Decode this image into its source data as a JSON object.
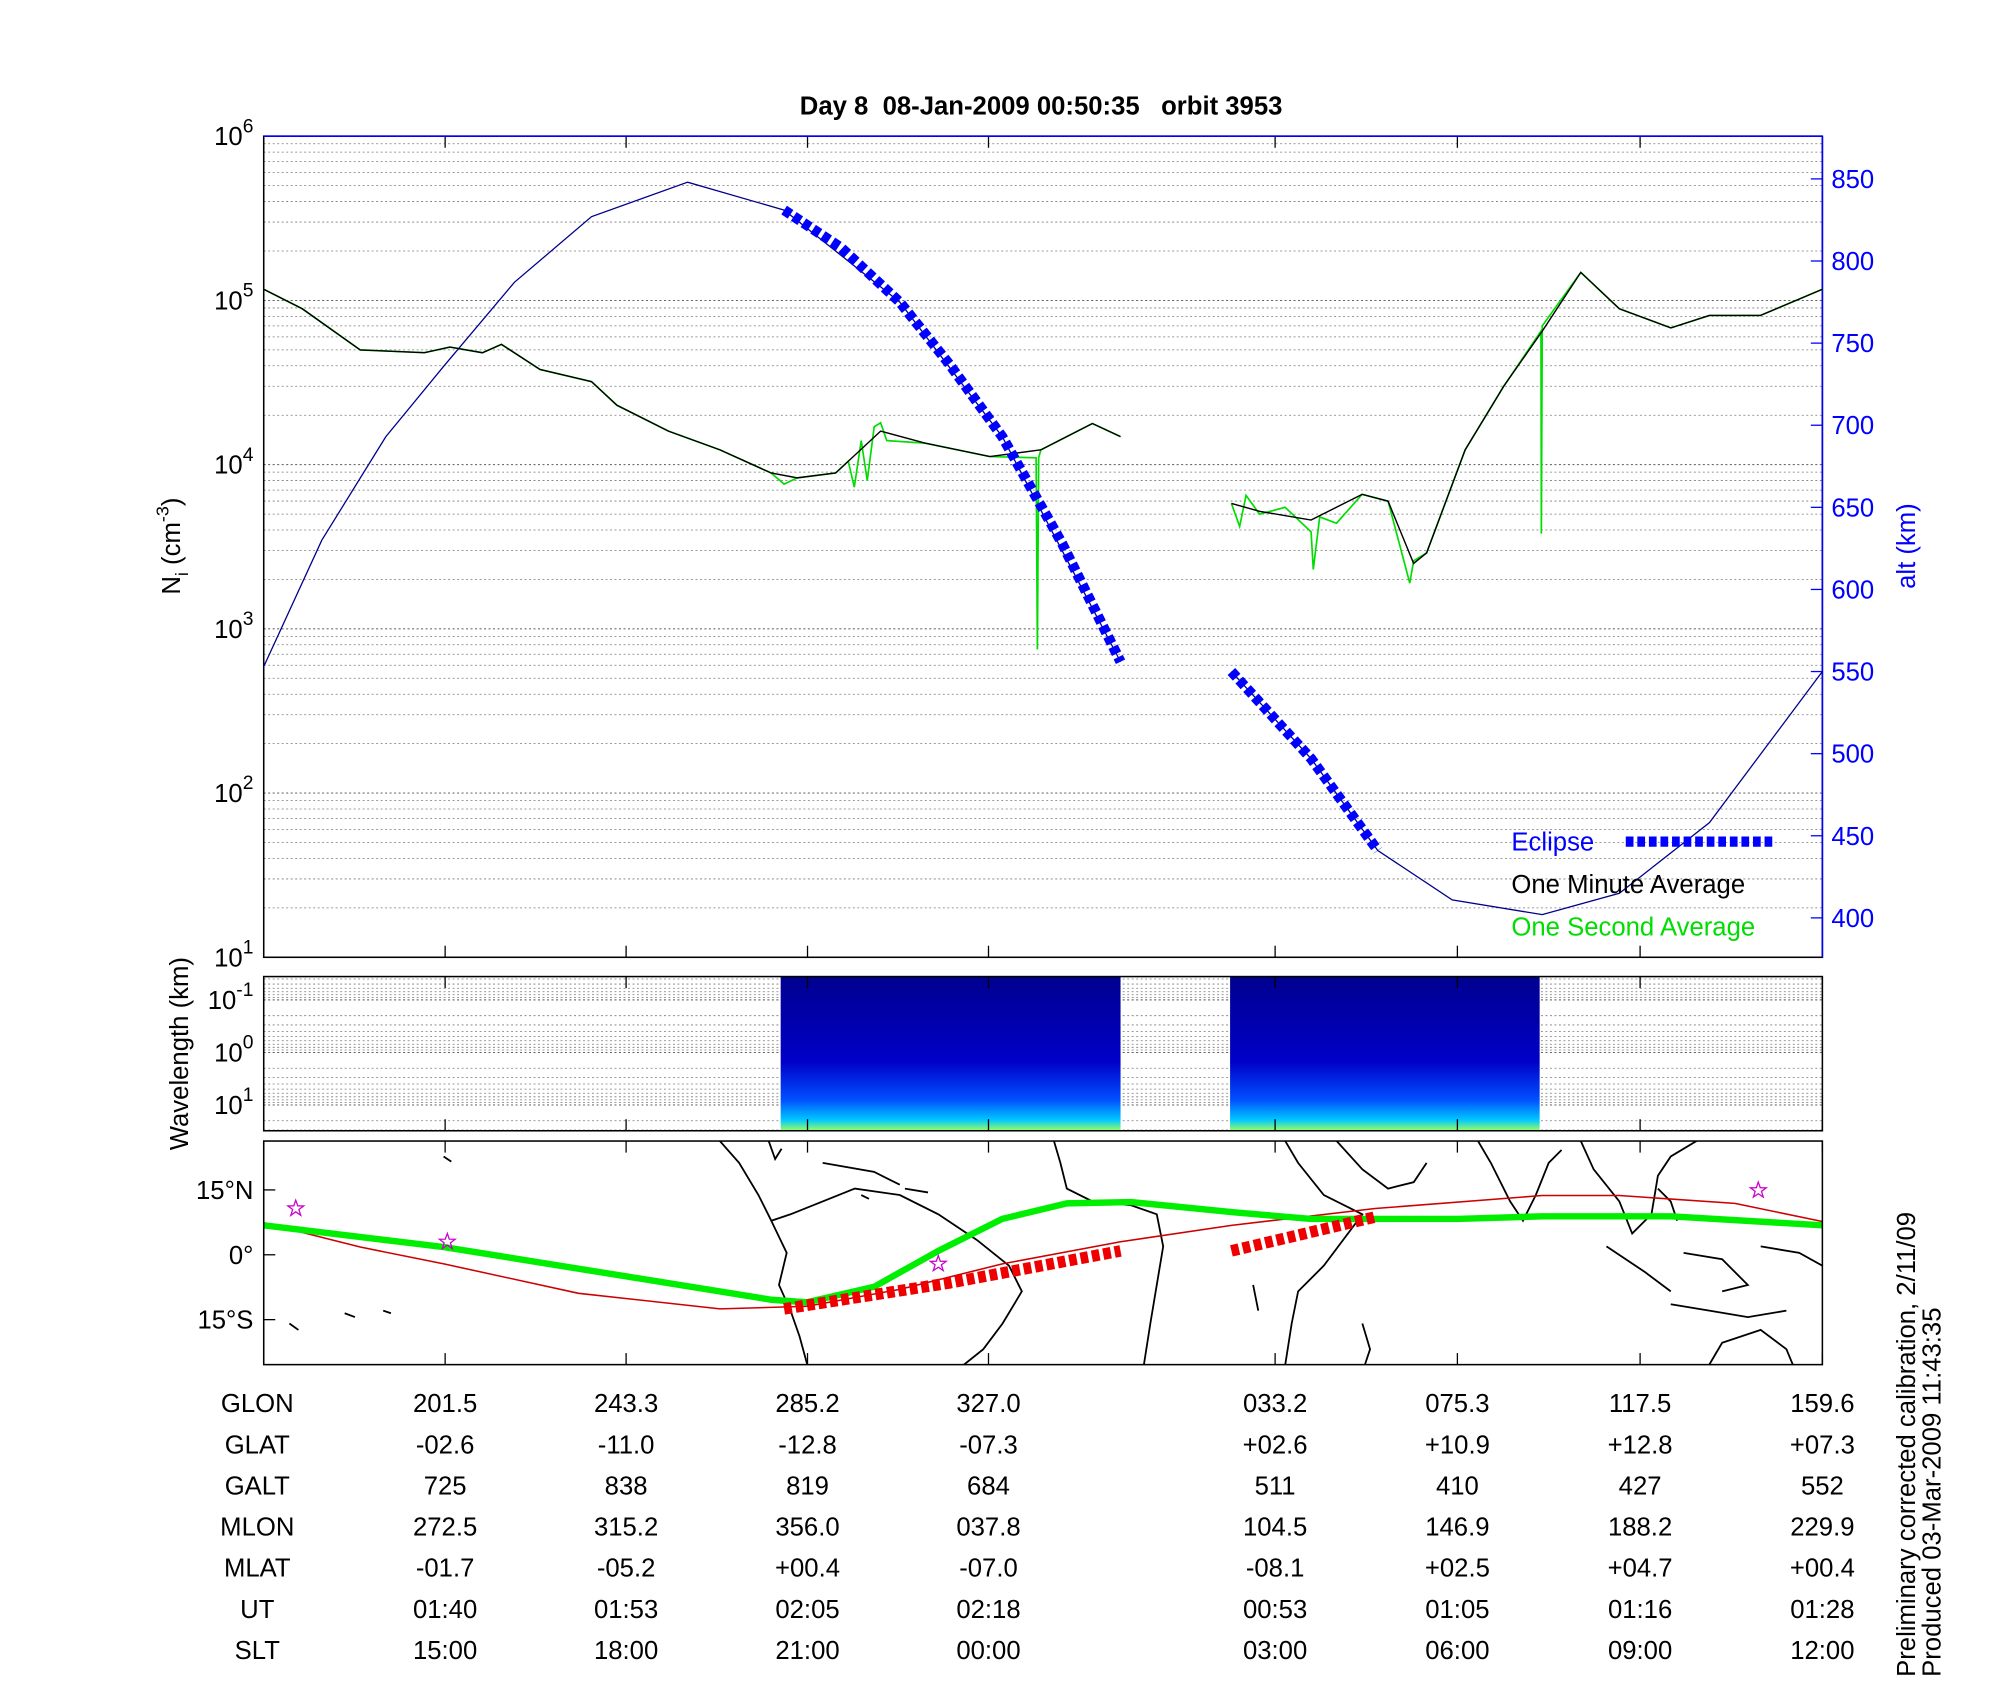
{
  "chart_data": [
    {
      "type": "line",
      "title": "Day 8  08-Jan-2009 00:50:35   orbit 3953",
      "ylabel": [
        "N",
        "i",
        " (cm",
        "-3",
        ")"
      ],
      "y2label": "alt (km)",
      "log_y": true,
      "grid": true,
      "legend": "lower right",
      "xlim": [
        159.6,
        519.6
      ],
      "xticks": [
        201.5,
        243.3,
        285.2,
        327.0,
        393.2,
        435.3,
        477.5,
        519.6
      ],
      "ylim": [
        10,
        1000000
      ],
      "yticks": [
        {
          "value": 10,
          "base": "10",
          "exponent": "1"
        },
        {
          "value": 100,
          "base": "10",
          "exponent": "2"
        },
        {
          "value": 1000,
          "base": "10",
          "exponent": "3"
        },
        {
          "value": 10000,
          "base": "10",
          "exponent": "4"
        },
        {
          "value": 100000,
          "base": "10",
          "exponent": "5"
        },
        {
          "value": 1000000,
          "base": "10",
          "exponent": "6"
        }
      ],
      "y2lim": [
        376,
        876
      ],
      "y2ticks": [
        400,
        450,
        500,
        550,
        600,
        650,
        700,
        750,
        800,
        850
      ],
      "y2color": "#0000ff",
      "series": [
        {
          "color": "#00008b",
          "axis": "y2",
          "width": 1,
          "x": [
            159.6,
            173.0,
            187.8,
            201.2,
            217.5,
            235.3,
            257.5,
            279.8,
            306.5,
            330.2,
            357.5,
            370.0,
            383.1,
            401.5,
            416.9,
            434.1,
            454.9,
            472.7,
            493.5,
            519.6
          ],
          "values": [
            553,
            630,
            693,
            736,
            787,
            827,
            848,
            831,
            775,
            693,
            556,
            null,
            550,
            497,
            441,
            411,
            402,
            415,
            458,
            550
          ]
        },
        {
          "name": "One Second Average",
          "color": "#00dd00",
          "width": 1.3,
          "x": [
            159.6,
            168.5,
            181.9,
            196.7,
            202.6,
            210.1,
            214.5,
            223.4,
            235.3,
            241.2,
            253.1,
            265.0,
            276.8,
            279.8,
            282.8,
            291.7,
            294.6,
            296.0,
            297.6,
            299.0,
            300.6,
            302.1,
            303.5,
            312.4,
            327.3,
            338.0,
            338.3,
            338.6,
            339.1,
            351.0,
            357.5,
            370.0,
            383.1,
            385.0,
            386.5,
            389.6,
            395.5,
            401.5,
            402.0,
            403.5,
            407.4,
            413.3,
            419.3,
            424.3,
            425.2,
            428.2,
            437.1,
            446.0,
            454.6,
            454.7,
            454.9,
            463.8,
            472.7,
            484.6,
            493.5,
            505.3,
            514.3,
            519.6
          ],
          "values": [
            117000,
            89000,
            50000,
            48000,
            52000,
            48000,
            54000,
            38000,
            32000,
            23000,
            16000,
            12300,
            8900,
            7600,
            8300,
            8900,
            10500,
            7300,
            14000,
            8000,
            17000,
            18000,
            14000,
            13500,
            11200,
            11000,
            750,
            11000,
            12300,
            17800,
            14800,
            null,
            5800,
            4200,
            6500,
            5000,
            5500,
            3900,
            2300,
            4800,
            4400,
            6600,
            6000,
            1900,
            2600,
            2900,
            12300,
            30000,
            65000,
            3800,
            70000,
            148000,
            89000,
            68000,
            81000,
            81000,
            102000,
            117000
          ]
        },
        {
          "name": "One Minute Average",
          "color": "#000000",
          "width": 1.1,
          "x": [
            159.6,
            168.5,
            181.9,
            196.7,
            202.6,
            210.1,
            214.5,
            223.4,
            235.3,
            241.2,
            253.1,
            265.0,
            276.8,
            282.8,
            291.7,
            302.1,
            312.4,
            327.3,
            339.1,
            351.0,
            357.5,
            370.0,
            383.1,
            389.6,
            401.5,
            413.3,
            419.3,
            425.2,
            428.2,
            437.1,
            446.0,
            454.9,
            463.8,
            472.7,
            484.6,
            493.5,
            505.3,
            514.3,
            519.6
          ],
          "values": [
            117000,
            89000,
            50000,
            48000,
            52000,
            48000,
            54000,
            38000,
            32000,
            23000,
            16000,
            12300,
            8900,
            8300,
            8900,
            16000,
            13500,
            11200,
            12300,
            17800,
            14800,
            null,
            5800,
            5200,
            4600,
            6600,
            6000,
            2500,
            2900,
            12300,
            30000,
            65000,
            148000,
            89000,
            68000,
            81000,
            81000,
            102000,
            117000
          ]
        },
        {
          "name": "Eclipse",
          "color": "#0000ff",
          "axis": "y2",
          "width": 8,
          "dashed": true,
          "x": [
            279.8,
            293.0,
            306.5,
            318.0,
            330.2,
            344.0,
            357.5,
            370.0,
            383.1,
            401.5,
            416.9
          ],
          "values": [
            831,
            808,
            775,
            737,
            693,
            628,
            556,
            null,
            550,
            497,
            441
          ]
        }
      ]
    },
    {
      "type": "spectrogram",
      "ylabel": "Wavelength (km)",
      "log_y": true,
      "y_inverted": true,
      "xlim": [
        159.6,
        519.6
      ],
      "xticks": [
        201.5,
        243.3,
        285.2,
        327.0,
        393.2,
        435.3,
        477.5,
        519.6
      ],
      "ylim": [
        0.036,
        31
      ],
      "yticks": [
        {
          "value": 0.1,
          "base": "10",
          "exponent": "-1"
        },
        {
          "value": 1,
          "base": "10",
          "exponent": "0"
        },
        {
          "value": 10,
          "base": "10",
          "exponent": "1"
        }
      ],
      "segments": [
        [
          279.0,
          357.5
        ],
        [
          382.8,
          454.3
        ]
      ]
    },
    {
      "type": "map",
      "xlim": [
        159.6,
        519.6
      ],
      "xticks": [
        201.5,
        243.3,
        285.2,
        327.0,
        393.2,
        435.3,
        477.5,
        519.6
      ],
      "ylim": [
        -25.4,
        26.3
      ],
      "yticks": [
        {
          "value": 15,
          "label": "15°N"
        },
        {
          "value": 0,
          "label": "0°"
        },
        {
          "value": -15,
          "label": "15°S"
        }
      ],
      "series": [
        {
          "color": "#cc0000",
          "width": 1.2,
          "x": [
            159.6,
            181.9,
            201.2,
            232.3,
            265.0,
            285.1,
            306.5,
            330.2,
            357.5,
            383.1,
            416.3,
            454.9,
            472.7,
            499.4,
            519.6
          ],
          "values": [
            7.4,
            1.8,
            -2.1,
            -8.9,
            -12.5,
            -11.9,
            -8.0,
            -2.1,
            3.0,
            6.8,
            10.7,
            13.7,
            13.7,
            11.9,
            7.7
          ]
        },
        {
          "color": "#00ee00",
          "width": 5,
          "x": [
            159.6,
            201.2,
            243.3,
            276.8,
            285.1,
            300.6,
            315.4,
            330.2,
            345.1,
            359.9,
            383.7,
            401.5,
            435.3,
            454.9,
            484.6,
            519.6
          ],
          "values": [
            6.8,
            1.8,
            -5.0,
            -10.4,
            -11.0,
            -7.4,
            0.9,
            8.3,
            11.9,
            12.2,
            9.8,
            8.3,
            8.3,
            8.9,
            8.9,
            6.8
          ]
        },
        {
          "color": "#ee0000",
          "width": 9,
          "dashed": true,
          "x": [
            279.8,
            318.0,
            357.5,
            370.0,
            383.1,
            416.9
          ],
          "values": [
            -12.5,
            -6.5,
            0.9,
            null,
            0.9,
            8.9
          ]
        }
      ],
      "markers": {
        "color": "#cc00cc",
        "x": [
          167.0,
          202.0,
          315.4,
          504.8
        ],
        "values": [
          10.7,
          3.0,
          -2.1,
          14.9
        ]
      }
    }
  ],
  "table": {
    "rows": [
      {
        "label": "GLON",
        "values": [
          "201.5",
          "243.3",
          "285.2",
          "327.0",
          "033.2",
          "075.3",
          "117.5",
          "159.6"
        ]
      },
      {
        "label": "GLAT",
        "values": [
          "-02.6",
          "-11.0",
          "-12.8",
          "-07.3",
          "+02.6",
          "+10.9",
          "+12.8",
          "+07.3"
        ]
      },
      {
        "label": "GALT",
        "values": [
          "725",
          "838",
          "819",
          "684",
          "511",
          "410",
          "427",
          "552"
        ]
      },
      {
        "label": "MLON",
        "values": [
          "272.5",
          "315.2",
          "356.0",
          "037.8",
          "104.5",
          "146.9",
          "188.2",
          "229.9"
        ]
      },
      {
        "label": "MLAT",
        "values": [
          "-01.7",
          "-05.2",
          "+00.4",
          "-07.0",
          "-08.1",
          "+02.5",
          "+04.7",
          "+00.4"
        ]
      },
      {
        "label": "UT",
        "values": [
          "01:40",
          "01:53",
          "02:05",
          "02:18",
          "00:53",
          "01:05",
          "01:16",
          "01:28"
        ]
      },
      {
        "label": "SLT",
        "values": [
          "15:00",
          "18:00",
          "21:00",
          "00:00",
          "03:00",
          "06:00",
          "09:00",
          "12:00"
        ]
      }
    ]
  },
  "footnote": [
    "Preliminary corrected calibration, 2/11/09",
    "Produced 03-Mar-2009 11:43:35"
  ]
}
